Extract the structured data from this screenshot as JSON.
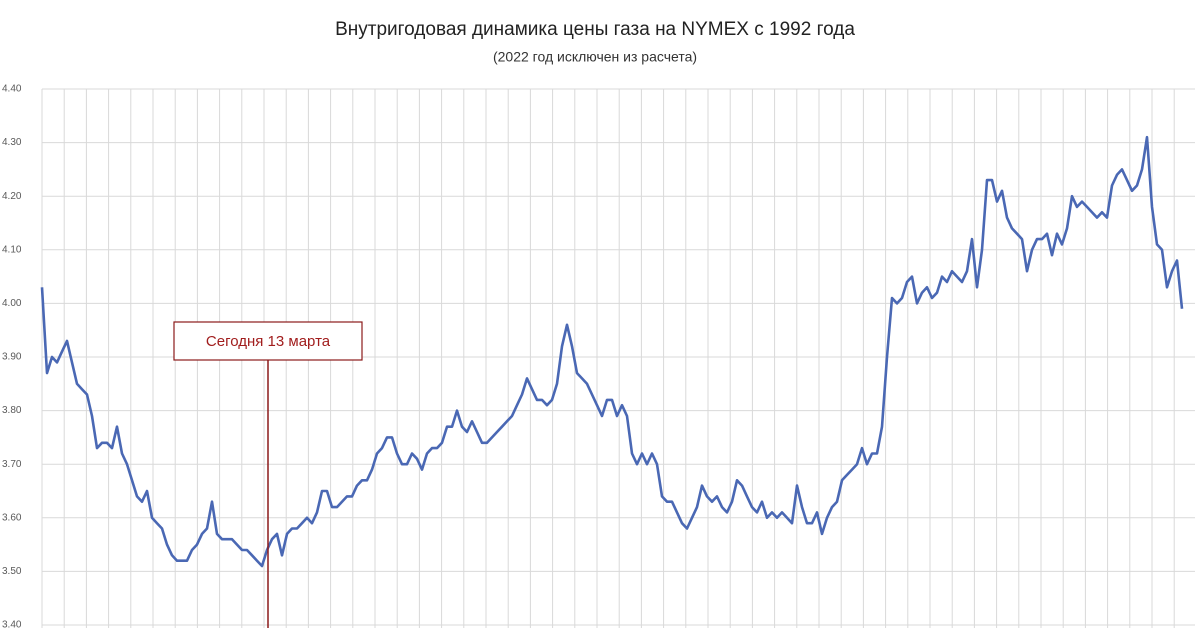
{
  "chart_data": {
    "type": "line",
    "title": "Внутригодовая динамика цены газа на NYMEX с 1992 года",
    "subtitle": "(2022 год исключен из расчета)",
    "annotation": "Сегодня 13 марта",
    "color": "#4a68b4",
    "grid": true,
    "ylim": [
      3.4,
      4.4
    ],
    "yticks": [
      {
        "value": 3.4,
        "label": "3.40"
      },
      {
        "value": 3.5,
        "label": "3.50"
      },
      {
        "value": 3.6,
        "label": "3.60"
      },
      {
        "value": 3.7,
        "label": "3.70"
      },
      {
        "value": 3.8,
        "label": "3.80"
      },
      {
        "value": 3.9,
        "label": "3.90"
      },
      {
        "value": 4.0,
        "label": "4.00"
      },
      {
        "value": 4.1,
        "label": "4.10"
      },
      {
        "value": 4.2,
        "label": "4.20"
      },
      {
        "value": 4.3,
        "label": "4.30"
      },
      {
        "value": 4.4,
        "label": "4.40"
      }
    ],
    "values": [
      4.03,
      3.87,
      3.9,
      3.89,
      3.91,
      3.93,
      3.89,
      3.85,
      3.84,
      3.83,
      3.79,
      3.73,
      3.74,
      3.74,
      3.73,
      3.77,
      3.72,
      3.7,
      3.67,
      3.64,
      3.63,
      3.65,
      3.6,
      3.59,
      3.58,
      3.55,
      3.53,
      3.52,
      3.52,
      3.52,
      3.54,
      3.55,
      3.57,
      3.58,
      3.63,
      3.57,
      3.56,
      3.56,
      3.56,
      3.55,
      3.54,
      3.54,
      3.53,
      3.52,
      3.51,
      3.54,
      3.56,
      3.57,
      3.53,
      3.57,
      3.58,
      3.58,
      3.59,
      3.6,
      3.59,
      3.61,
      3.65,
      3.65,
      3.62,
      3.62,
      3.63,
      3.64,
      3.64,
      3.66,
      3.67,
      3.67,
      3.69,
      3.72,
      3.73,
      3.75,
      3.75,
      3.72,
      3.7,
      3.7,
      3.72,
      3.71,
      3.69,
      3.72,
      3.73,
      3.73,
      3.74,
      3.77,
      3.77,
      3.8,
      3.77,
      3.76,
      3.78,
      3.76,
      3.74,
      3.74,
      3.75,
      3.76,
      3.77,
      3.78,
      3.79,
      3.81,
      3.83,
      3.86,
      3.84,
      3.82,
      3.82,
      3.81,
      3.82,
      3.85,
      3.92,
      3.96,
      3.92,
      3.87,
      3.86,
      3.85,
      3.83,
      3.81,
      3.79,
      3.82,
      3.82,
      3.79,
      3.81,
      3.79,
      3.72,
      3.7,
      3.72,
      3.7,
      3.72,
      3.7,
      3.64,
      3.63,
      3.63,
      3.61,
      3.59,
      3.58,
      3.6,
      3.62,
      3.66,
      3.64,
      3.63,
      3.64,
      3.62,
      3.61,
      3.63,
      3.67,
      3.66,
      3.64,
      3.62,
      3.61,
      3.63,
      3.6,
      3.61,
      3.6,
      3.61,
      3.6,
      3.59,
      3.66,
      3.62,
      3.59,
      3.59,
      3.61,
      3.57,
      3.6,
      3.62,
      3.63,
      3.67,
      3.68,
      3.69,
      3.7,
      3.73,
      3.7,
      3.72,
      3.72,
      3.77,
      3.9,
      4.01,
      4.0,
      4.01,
      4.04,
      4.05,
      4.0,
      4.02,
      4.03,
      4.01,
      4.02,
      4.05,
      4.04,
      4.06,
      4.05,
      4.04,
      4.06,
      4.12,
      4.03,
      4.1,
      4.23,
      4.23,
      4.19,
      4.21,
      4.16,
      4.14,
      4.13,
      4.12,
      4.06,
      4.1,
      4.12,
      4.12,
      4.13,
      4.09,
      4.13,
      4.11,
      4.14,
      4.2,
      4.18,
      4.19,
      4.18,
      4.17,
      4.16,
      4.17,
      4.16,
      4.22,
      4.24,
      4.25,
      4.23,
      4.21,
      4.22,
      4.25,
      4.31,
      4.18,
      4.11,
      4.1,
      4.03,
      4.06,
      4.08,
      3.99
    ]
  }
}
